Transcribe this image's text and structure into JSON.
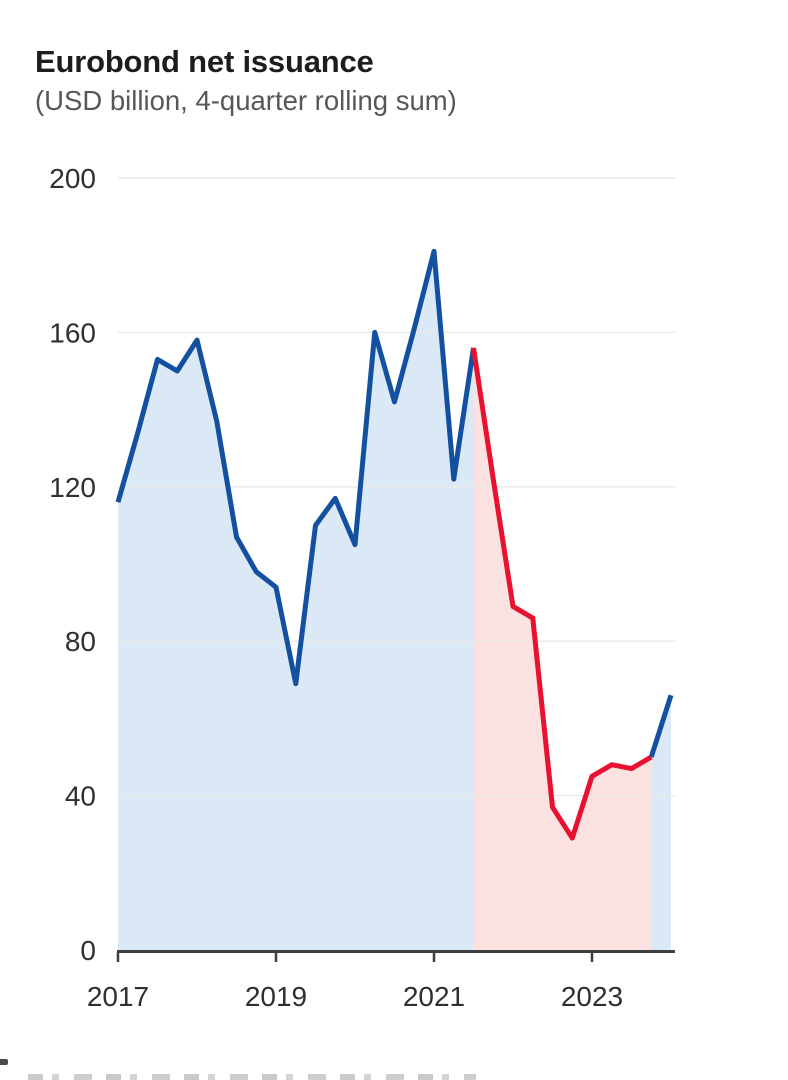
{
  "header": {
    "title": "Eurobond net issuance",
    "subtitle": "(USD billion, 4-quarter rolling sum)"
  },
  "colors": {
    "blue_line": "#1450a0",
    "red_line": "#e8112f",
    "blue_fill": "#dbe8f5",
    "pink_fill": "#fbe2e0",
    "grid": "#e8e8e8",
    "axis": "#3f3f3f",
    "title_text": "#1d1d1d",
    "subtitle_text": "#575757",
    "tick_text": "#2f2f2f"
  },
  "chart_data": {
    "type": "line",
    "title": "Eurobond net issuance",
    "subtitle": "(USD billion, 4-quarter rolling sum)",
    "x_unit": "quarter",
    "categories": [
      "2017Q1",
      "2017Q2",
      "2017Q3",
      "2017Q4",
      "2018Q1",
      "2018Q2",
      "2018Q3",
      "2018Q4",
      "2019Q1",
      "2019Q2",
      "2019Q3",
      "2019Q4",
      "2020Q1",
      "2020Q2",
      "2020Q3",
      "2020Q4",
      "2021Q1",
      "2021Q2",
      "2021Q3",
      "2021Q4",
      "2022Q1",
      "2022Q2",
      "2022Q3",
      "2022Q4",
      "2023Q1",
      "2023Q2",
      "2023Q3",
      "2023Q4",
      "2024Q1"
    ],
    "values": [
      116,
      134,
      153,
      150,
      158,
      137,
      107,
      98,
      94,
      69,
      110,
      117,
      105,
      160,
      142,
      161,
      181,
      122,
      156,
      122,
      89,
      86,
      37,
      29,
      45,
      48,
      47,
      50,
      66
    ],
    "segments": [
      {
        "name": "early-period-blue",
        "color_key": "blue",
        "from_index": 0,
        "to_index": 18
      },
      {
        "name": "downturn-red",
        "color_key": "red",
        "from_index": 18,
        "to_index": 27
      },
      {
        "name": "rebound-blue",
        "color_key": "blue",
        "from_index": 27,
        "to_index": 28
      }
    ],
    "x_tick_labels": [
      "2017",
      "2019",
      "2021",
      "2023"
    ],
    "x_tick_indices": [
      0,
      8,
      16,
      24
    ],
    "y_ticks": [
      0,
      40,
      80,
      120,
      160,
      200
    ],
    "ylim": [
      0,
      200
    ],
    "grid": true,
    "legend": false,
    "area_filled": true
  }
}
